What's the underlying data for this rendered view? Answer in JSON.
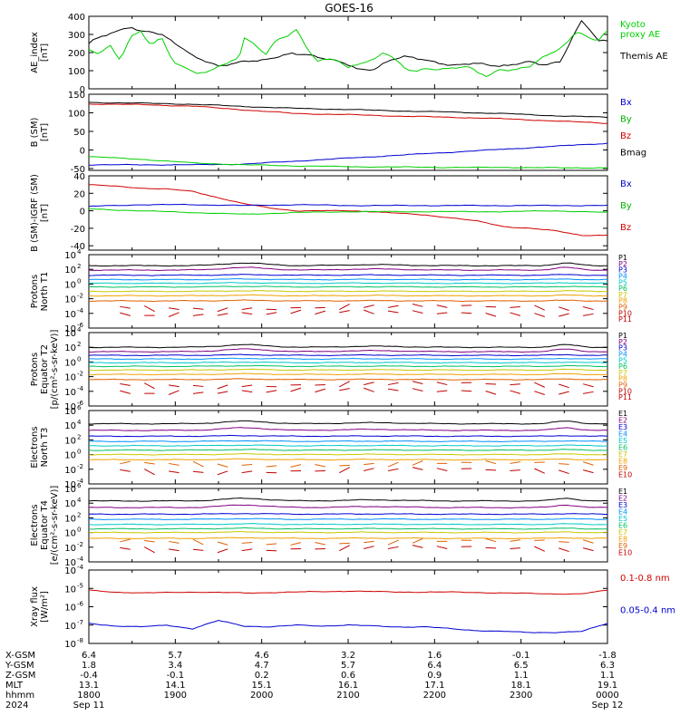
{
  "title": "GOES-16",
  "chart_data": [
    {
      "type": "line",
      "id": "ae",
      "ylabel": [
        "AE_index",
        "[nT]"
      ],
      "ylim": [
        0,
        400
      ],
      "log": false,
      "yticks": [
        0,
        100,
        200,
        300,
        400
      ],
      "ticklabels": [
        "0",
        "100",
        "200",
        "300",
        "400"
      ],
      "legend": [
        {
          "lines": [
            "Kyoto",
            "proxy AE"
          ],
          "color": "#00d000"
        },
        {
          "lines": [
            "Themis AE"
          ],
          "color": "#000000"
        }
      ],
      "series": [
        {
          "color": "#000000",
          "x": [
            0,
            0.01,
            0.03,
            0.06,
            0.08,
            0.1,
            0.12,
            0.14,
            0.16,
            0.18,
            0.2,
            0.23,
            0.25,
            0.28,
            0.3,
            0.33,
            0.36,
            0.39,
            0.42,
            0.45,
            0.48,
            0.5,
            0.52,
            0.55,
            0.58,
            0.61,
            0.64,
            0.67,
            0.7,
            0.73,
            0.76,
            0.79,
            0.82,
            0.85,
            0.88,
            0.91,
            0.93,
            0.95,
            0.97,
            0.98,
            1
          ],
          "y": [
            250,
            270,
            290,
            320,
            345,
            320,
            320,
            300,
            260,
            220,
            180,
            150,
            130,
            140,
            150,
            150,
            175,
            200,
            190,
            165,
            150,
            135,
            110,
            110,
            155,
            175,
            165,
            150,
            130,
            135,
            135,
            125,
            140,
            150,
            125,
            150,
            270,
            380,
            320,
            265,
            265
          ]
        },
        {
          "color": "#00d000",
          "x": [
            0,
            0.02,
            0.04,
            0.06,
            0.08,
            0.1,
            0.12,
            0.14,
            0.16,
            0.17,
            0.19,
            0.21,
            0.23,
            0.25,
            0.27,
            0.29,
            0.3,
            0.32,
            0.34,
            0.36,
            0.38,
            0.4,
            0.42,
            0.44,
            0.46,
            0.48,
            0.5,
            0.53,
            0.55,
            0.57,
            0.59,
            0.61,
            0.63,
            0.65,
            0.67,
            0.7,
            0.73,
            0.75,
            0.77,
            0.79,
            0.82,
            0.85,
            0.87,
            0.9,
            0.92,
            0.94,
            0.95,
            0.97,
            0.98,
            1
          ],
          "y": [
            210,
            190,
            240,
            160,
            290,
            320,
            240,
            280,
            160,
            130,
            110,
            90,
            95,
            130,
            140,
            170,
            280,
            240,
            190,
            270,
            290,
            330,
            220,
            150,
            160,
            160,
            120,
            150,
            160,
            200,
            160,
            110,
            100,
            115,
            110,
            110,
            120,
            90,
            70,
            110,
            105,
            120,
            160,
            210,
            250,
            320,
            310,
            270,
            260,
            320
          ]
        }
      ]
    },
    {
      "type": "line",
      "id": "bsm",
      "ylabel": [
        "B (SM)",
        "[nT]"
      ],
      "ylim": [
        -55,
        150
      ],
      "log": false,
      "yticks": [
        -50,
        0,
        50,
        100,
        150
      ],
      "ticklabels": [
        "-50",
        "0",
        "50",
        "100",
        "150"
      ],
      "legend": [
        {
          "lines": [
            "Bx"
          ],
          "color": "#0000d0"
        },
        {
          "lines": [
            "By"
          ],
          "color": "#00b000"
        },
        {
          "lines": [
            "Bz"
          ],
          "color": "#d00000"
        },
        {
          "lines": [
            "Bmag"
          ],
          "color": "#000000"
        }
      ],
      "series": [
        {
          "color": "#000000",
          "x": [
            0,
            0.1,
            0.2,
            0.3,
            0.4,
            0.5,
            0.6,
            0.7,
            0.8,
            0.9,
            1
          ],
          "y": [
            128,
            126,
            123,
            117,
            112,
            109,
            105,
            102,
            98,
            92,
            88
          ]
        },
        {
          "color": "#d00000",
          "x": [
            0,
            0.1,
            0.2,
            0.3,
            0.4,
            0.5,
            0.6,
            0.7,
            0.8,
            0.9,
            1
          ],
          "y": [
            124,
            122,
            118,
            108,
            98,
            95,
            91,
            88,
            84,
            78,
            72
          ]
        },
        {
          "color": "#0000d0",
          "x": [
            0,
            0.1,
            0.2,
            0.3,
            0.4,
            0.5,
            0.6,
            0.7,
            0.8,
            0.9,
            1
          ],
          "y": [
            -40,
            -40,
            -40,
            -38,
            -30,
            -22,
            -14,
            -6,
            2,
            10,
            18
          ]
        },
        {
          "color": "#00d000",
          "x": [
            0,
            0.1,
            0.2,
            0.3,
            0.4,
            0.5,
            0.6,
            0.7,
            0.8,
            0.9,
            1
          ],
          "y": [
            -18,
            -25,
            -35,
            -40,
            -43,
            -45,
            -46,
            -47,
            -47,
            -48,
            -48
          ]
        }
      ]
    },
    {
      "type": "line",
      "id": "bigrf",
      "ylabel": [
        "B (SM)-IGRF (SM)",
        "[nT]"
      ],
      "ylim": [
        -45,
        40
      ],
      "log": false,
      "yticks": [
        -40,
        -20,
        0,
        20,
        40
      ],
      "ticklabels": [
        "-40",
        "-20",
        "0",
        "20",
        "40"
      ],
      "legend": [
        {
          "lines": [
            "Bx"
          ],
          "color": "#0000d0"
        },
        {
          "lines": [
            "By"
          ],
          "color": "#00b000"
        },
        {
          "lines": [
            "Bz"
          ],
          "color": "#d00000"
        }
      ],
      "series": [
        {
          "color": "#d00000",
          "x": [
            0,
            0.05,
            0.1,
            0.15,
            0.2,
            0.25,
            0.3,
            0.35,
            0.4,
            0.45,
            0.5,
            0.55,
            0.6,
            0.65,
            0.7,
            0.75,
            0.8,
            0.85,
            0.9,
            0.95,
            1
          ],
          "y": [
            30,
            28,
            26,
            25,
            22,
            15,
            8,
            3,
            0,
            0,
            0,
            -1,
            -3,
            -5,
            -8,
            -12,
            -18,
            -20,
            -23,
            -28,
            -28
          ]
        },
        {
          "color": "#0000d0",
          "x": [
            0,
            0.1,
            0.2,
            0.3,
            0.4,
            0.5,
            0.6,
            0.7,
            0.8,
            0.9,
            1
          ],
          "y": [
            5,
            7,
            7,
            6,
            7,
            6,
            6,
            6,
            6,
            6,
            6
          ]
        },
        {
          "color": "#00d000",
          "x": [
            0,
            0.1,
            0.2,
            0.3,
            0.4,
            0.5,
            0.6,
            0.7,
            0.8,
            0.9,
            1
          ],
          "y": [
            2,
            0,
            -2,
            -4,
            -2,
            -1,
            -1,
            -1,
            -1,
            0,
            -2
          ]
        }
      ]
    },
    {
      "type": "line",
      "id": "p1",
      "ylabel": [
        "Protons",
        "North T1"
      ],
      "ylim": [
        -6,
        4
      ],
      "log": true,
      "yticks": [
        -6,
        -4,
        -2,
        0,
        2,
        4
      ],
      "ticklabels": [
        "10",
        "10",
        "10",
        "10",
        "10",
        "10"
      ],
      "tickexp": [
        "-6",
        "-4",
        "-2",
        "0",
        "2",
        "4"
      ],
      "channels": [
        "P1",
        "P2",
        "P3",
        "P4",
        "P5",
        "P6",
        "P7",
        "P8",
        "P9",
        "P10",
        "P11"
      ],
      "levels": [
        2.5,
        1.9,
        1.2,
        0.6,
        0.1,
        -0.4,
        -1.0,
        -1.6,
        -2.3,
        -3.2,
        -4.0
      ],
      "colors": [
        "#000000",
        "#800080",
        "#0000d0",
        "#0090ff",
        "#00c8c8",
        "#00c060",
        "#c8c800",
        "#f0a000",
        "#e06000",
        "#c00000",
        "#c00000"
      ]
    },
    {
      "type": "line",
      "id": "p2",
      "ylabel": [
        "Protons",
        "Equator T2",
        "[p/(cm²-s-sr-keV)]"
      ],
      "ylim": [
        -6,
        4
      ],
      "log": true,
      "yticks": [
        -6,
        -4,
        -2,
        0,
        2,
        4
      ],
      "ticklabels": [
        "10",
        "10",
        "10",
        "10",
        "10",
        "10"
      ],
      "tickexp": [
        "-6",
        "-4",
        "-2",
        "0",
        "2",
        "4"
      ],
      "channels": [
        "P1",
        "P2",
        "P3",
        "P4",
        "P5",
        "P6",
        "P7",
        "P8",
        "P9",
        "P10",
        "P11"
      ],
      "levels": [
        2.0,
        1.4,
        0.9,
        0.4,
        -0.1,
        -0.6,
        -1.1,
        -1.7,
        -2.4,
        -3.1,
        -4.0
      ],
      "colors": [
        "#000000",
        "#800080",
        "#0000d0",
        "#0090ff",
        "#00c8c8",
        "#00c060",
        "#c8c800",
        "#f0a000",
        "#e06000",
        "#c00000",
        "#c00000"
      ]
    },
    {
      "type": "line",
      "id": "e1",
      "ylabel": [
        "Electrons",
        "North T3"
      ],
      "ylim": [
        -4,
        6
      ],
      "log": true,
      "yticks": [
        -4,
        -2,
        0,
        2,
        4,
        6
      ],
      "ticklabels": [
        "10",
        "10",
        "10",
        "10",
        "10",
        "10"
      ],
      "tickexp": [
        "-4",
        "-2",
        "0",
        "2",
        "4",
        "6"
      ],
      "channels": [
        "E1",
        "E2",
        "E3",
        "E4",
        "E5",
        "E6",
        "E7",
        "E8",
        "E9",
        "E10"
      ],
      "levels": [
        4.2,
        3.3,
        2.5,
        1.8,
        1.2,
        0.6,
        0.0,
        -0.7,
        -1.3,
        -2.2
      ],
      "colors": [
        "#000000",
        "#800080",
        "#0000d0",
        "#0090ff",
        "#00c8c8",
        "#00c060",
        "#c8c800",
        "#f0a000",
        "#e06000",
        "#c00000"
      ]
    },
    {
      "type": "line",
      "id": "e2",
      "ylabel": [
        "Electrons",
        "Equator T4",
        "[e/(cm²-s-sr-keV)]"
      ],
      "ylim": [
        -4,
        6
      ],
      "log": true,
      "yticks": [
        -4,
        -2,
        0,
        2,
        4,
        6
      ],
      "ticklabels": [
        "10",
        "10",
        "10",
        "10",
        "10",
        "10"
      ],
      "tickexp": [
        "-4",
        "-2",
        "0",
        "2",
        "4",
        "6"
      ],
      "channels": [
        "E1",
        "E2",
        "E3",
        "E4",
        "E5",
        "E6",
        "E7",
        "E8",
        "E9",
        "E10"
      ],
      "levels": [
        4.3,
        3.4,
        2.5,
        1.8,
        1.1,
        0.5,
        0.0,
        -0.8,
        -1.3,
        -2.2
      ],
      "colors": [
        "#000000",
        "#800080",
        "#0000d0",
        "#0090ff",
        "#00c8c8",
        "#00c060",
        "#c8c800",
        "#f0a000",
        "#e06000",
        "#c00000"
      ]
    },
    {
      "type": "line",
      "id": "xray",
      "ylabel": [
        "Xray flux",
        "[W/m²]"
      ],
      "ylim": [
        -8,
        -4
      ],
      "log": true,
      "yticks": [
        -8,
        -7,
        -6,
        -5,
        -4
      ],
      "ticklabels": [
        "10",
        "10",
        "10",
        "10",
        "10"
      ],
      "tickexp": [
        "-8",
        "-7",
        "-6",
        "-5",
        "-4"
      ],
      "legend": [
        {
          "lines": [
            "0.1-0.8 nm"
          ],
          "color": "#d00000"
        },
        {
          "lines": [
            "0.05-0.4 nm"
          ],
          "color": "#0000d0"
        }
      ],
      "series": [
        {
          "color": "#d00000",
          "x": [
            0,
            0.05,
            0.1,
            0.2,
            0.3,
            0.4,
            0.5,
            0.6,
            0.7,
            0.8,
            0.9,
            0.95,
            1
          ],
          "y": [
            -5.1,
            -5.2,
            -5.25,
            -5.2,
            -5.25,
            -5.2,
            -5.15,
            -5.2,
            -5.2,
            -5.25,
            -5.3,
            -5.3,
            -5.1
          ]
        },
        {
          "color": "#0000d0",
          "x": [
            0,
            0.05,
            0.1,
            0.15,
            0.2,
            0.25,
            0.3,
            0.35,
            0.4,
            0.45,
            0.5,
            0.55,
            0.6,
            0.65,
            0.7,
            0.75,
            0.8,
            0.85,
            0.9,
            0.95,
            1
          ],
          "y": [
            -6.9,
            -7.05,
            -7.1,
            -7.0,
            -7.2,
            -6.75,
            -7.05,
            -7.1,
            -7.0,
            -7.05,
            -7.0,
            -7.05,
            -7.1,
            -7.1,
            -7.2,
            -7.3,
            -7.35,
            -7.4,
            -7.4,
            -7.35,
            -6.9
          ]
        }
      ]
    }
  ],
  "xaxis": {
    "rows": [
      {
        "label": "X-GSM",
        "values": [
          "6.4",
          "5.7",
          "4.6",
          "3.2",
          "1.6",
          "-0.1",
          "-1.8"
        ]
      },
      {
        "label": "Y-GSM",
        "values": [
          "1.8",
          "3.4",
          "4.7",
          "5.7",
          "6.4",
          "6.5",
          "6.3"
        ]
      },
      {
        "label": "Z-GSM",
        "values": [
          "-0.4",
          "-0.1",
          "0.2",
          "0.6",
          "0.9",
          "1.1",
          "1.1"
        ]
      },
      {
        "label": "MLT",
        "values": [
          "13.1",
          "14.1",
          "15.1",
          "16.1",
          "17.1",
          "18.1",
          "19.1"
        ]
      },
      {
        "label": "hhmm",
        "values": [
          "1800",
          "1900",
          "2000",
          "2100",
          "2200",
          "2300",
          "0000"
        ]
      }
    ],
    "year": "2024",
    "start_date": "Sep 11",
    "end_date": "Sep 12"
  }
}
